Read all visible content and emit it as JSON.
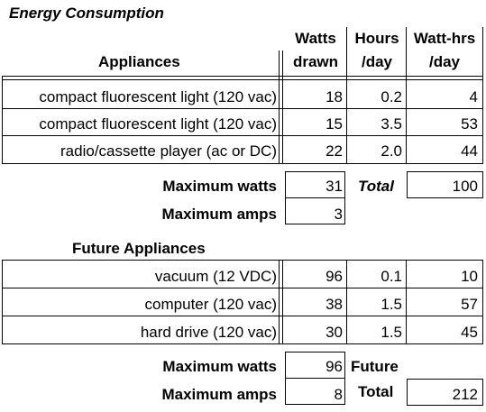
{
  "title": "Energy Consumption",
  "headers": {
    "appliances": "Appliances",
    "watts_1": "Watts",
    "watts_2": "drawn",
    "hours_1": "Hours",
    "hours_2": "/day",
    "watthrs_1": "Watt-hrs",
    "watthrs_2": "/day"
  },
  "appliances": [
    {
      "name": "compact fluorescent light (120 vac)",
      "watts": "18",
      "hours": "0.2",
      "watthrs": "4"
    },
    {
      "name": "compact fluorescent light (120 vac)",
      "watts": "15",
      "hours": "3.5",
      "watthrs": "53"
    },
    {
      "name": "radio/cassette player (ac or DC)",
      "watts": "22",
      "hours": "2.0",
      "watthrs": "44"
    }
  ],
  "summary": {
    "max_watts_label": "Maximum watts",
    "max_watts": "31",
    "total_label": "Total",
    "total": "100",
    "max_amps_label": "Maximum amps",
    "max_amps": "3"
  },
  "future_title": "Future Appliances",
  "future_appliances": [
    {
      "name": "vacuum (12 VDC)",
      "watts": "96",
      "hours": "0.1",
      "watthrs": "10"
    },
    {
      "name": "computer (120 vac)",
      "watts": "38",
      "hours": "1.5",
      "watthrs": "57"
    },
    {
      "name": "hard drive (120 vac)",
      "watts": "30",
      "hours": "1.5",
      "watthrs": "45"
    }
  ],
  "future_summary": {
    "max_watts_label": "Maximum watts",
    "max_watts": "96",
    "future_label": "Future",
    "total_label": "Total",
    "total": "212",
    "max_amps_label": "Maximum amps",
    "max_amps": "8"
  }
}
